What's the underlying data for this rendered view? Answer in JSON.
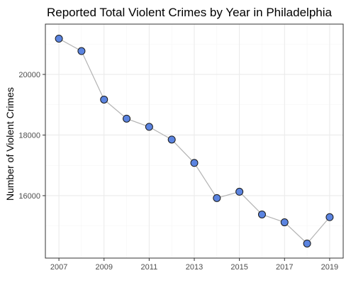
{
  "chart_data": {
    "type": "line",
    "title": "Reported Total Violent Crimes by Year in Philadelphia",
    "xlabel": "",
    "ylabel": "Number of Violent Crimes",
    "x": [
      2007,
      2008,
      2009,
      2010,
      2011,
      2012,
      2013,
      2014,
      2015,
      2016,
      2017,
      2018,
      2019
    ],
    "series": [
      {
        "values": [
          21180,
          20770,
          19170,
          18540,
          18270,
          17850,
          17080,
          15920,
          16130,
          15380,
          15120,
          14420,
          15290
        ]
      }
    ],
    "xlim": [
      2006.4,
      2019.6
    ],
    "ylim": [
      13940,
      21660
    ],
    "x_ticks": [
      2007,
      2009,
      2011,
      2013,
      2015,
      2017,
      2019
    ],
    "y_ticks": [
      16000,
      18000,
      20000
    ],
    "x_minor_ticks": [
      2008,
      2010,
      2012,
      2014,
      2016,
      2018
    ],
    "y_minor_ticks": [
      15000,
      17000,
      19000,
      21000
    ],
    "grid": true,
    "legend": "none",
    "colors": {
      "point_fill": "#5b84e0",
      "point_stroke": "#1a1a1a",
      "line": "#b3b3b3",
      "grid_major": "#ebebeb",
      "grid_minor": "#f5f5f5",
      "panel_border": "#333333",
      "tick_label": "#4d4d4d"
    }
  }
}
